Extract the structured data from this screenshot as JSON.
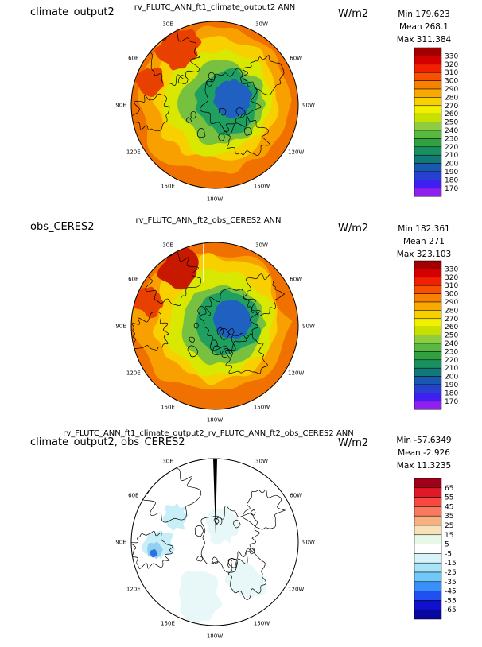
{
  "panels": [
    {
      "left_title": "climate_output2",
      "center_title": "rv_FLUTC_ANN_ft1_climate_output2  ANN",
      "units": "W/m2",
      "stats": {
        "min": "Min 179.623",
        "mean": "Mean 268.1",
        "max": "Max 311.384"
      },
      "colorbar": {
        "labels": [
          "330",
          "320",
          "310",
          "300",
          "290",
          "280",
          "270",
          "260",
          "250",
          "240",
          "230",
          "220",
          "210",
          "200",
          "190",
          "180",
          "170"
        ],
        "colors": [
          "#a00000",
          "#d40000",
          "#f02000",
          "#f85000",
          "#f88000",
          "#f8a800",
          "#f8d000",
          "#f0f000",
          "#c8e000",
          "#90cc40",
          "#58b840",
          "#30a040",
          "#189060",
          "#107878",
          "#1858b0",
          "#2840d0",
          "#4020f0",
          "#9020f0"
        ]
      },
      "map": {
        "fills": [
          "#f07000",
          "#f8a000",
          "#f8d000",
          "#d8e800",
          "#78c040",
          "#20a060",
          "#2060c0"
        ],
        "has_diff_artifacts": false
      },
      "lon_labels": [
        "30E",
        "30W",
        "60E",
        "60W",
        "90E",
        "90W",
        "120E",
        "120W",
        "150E",
        "150W",
        "180W"
      ]
    },
    {
      "left_title": "obs_CERES2",
      "center_title": "rv_FLUTC_ANN_ft2_obs_CERES2  ANN",
      "units": "W/m2",
      "stats": {
        "min": "Min 182.361",
        "mean": "Mean 271",
        "max": "Max 323.103"
      },
      "colorbar": {
        "labels": [
          "330",
          "320",
          "310",
          "300",
          "290",
          "280",
          "270",
          "260",
          "250",
          "240",
          "230",
          "220",
          "210",
          "200",
          "190",
          "180",
          "170"
        ],
        "colors": [
          "#a00000",
          "#d40000",
          "#f02000",
          "#f85000",
          "#f88000",
          "#f8a800",
          "#f8d000",
          "#f0f000",
          "#c8e000",
          "#90cc40",
          "#58b840",
          "#30a040",
          "#189060",
          "#107878",
          "#1858b0",
          "#2840d0",
          "#4020f0",
          "#9020f0"
        ]
      },
      "map": {
        "fills": [
          "#f07000",
          "#f8a000",
          "#f8d000",
          "#d8e800",
          "#78c040",
          "#20a060",
          "#2060c0"
        ],
        "has_diff_artifacts": false
      },
      "lon_labels": [
        "30E",
        "30W",
        "60E",
        "60W",
        "90E",
        "90W",
        "120E",
        "120W",
        "150E",
        "150W",
        "180W"
      ]
    },
    {
      "left_title": "climate_output2, obs_CERES2",
      "center_title": "rv_FLUTC_ANN_ft1_climate_output2_rv_FLUTC_ANN_ft2_obs_CERES2  ANN",
      "units": "W/m2",
      "stats": {
        "min": "Min -57.6349",
        "mean": "Mean -2.926",
        "max": "Max 11.3235"
      },
      "colorbar": {
        "labels": [
          "65",
          "55",
          "45",
          "35",
          "25",
          "15",
          "5",
          "-5",
          "-15",
          "-25",
          "-35",
          "-45",
          "-55",
          "-65"
        ],
        "colors": [
          "#a00018",
          "#e01828",
          "#f84840",
          "#f87860",
          "#f8b080",
          "#f8e0b8",
          "#e8f8e8",
          "#ffffff",
          "#d8f4f8",
          "#a8e4f8",
          "#70c8f8",
          "#3890f8",
          "#2050f0",
          "#1010d0",
          "#0808a0"
        ]
      },
      "map": {
        "fills": [
          "#ffffff",
          "#e8f8f8",
          "#c8eef8",
          "#90d0f0",
          "#3070e0"
        ],
        "has_diff_artifacts": true
      },
      "lon_labels": [
        "30E",
        "30W",
        "60E",
        "60W",
        "90E",
        "90W",
        "120E",
        "120W",
        "150E",
        "150W",
        "180W"
      ]
    }
  ]
}
